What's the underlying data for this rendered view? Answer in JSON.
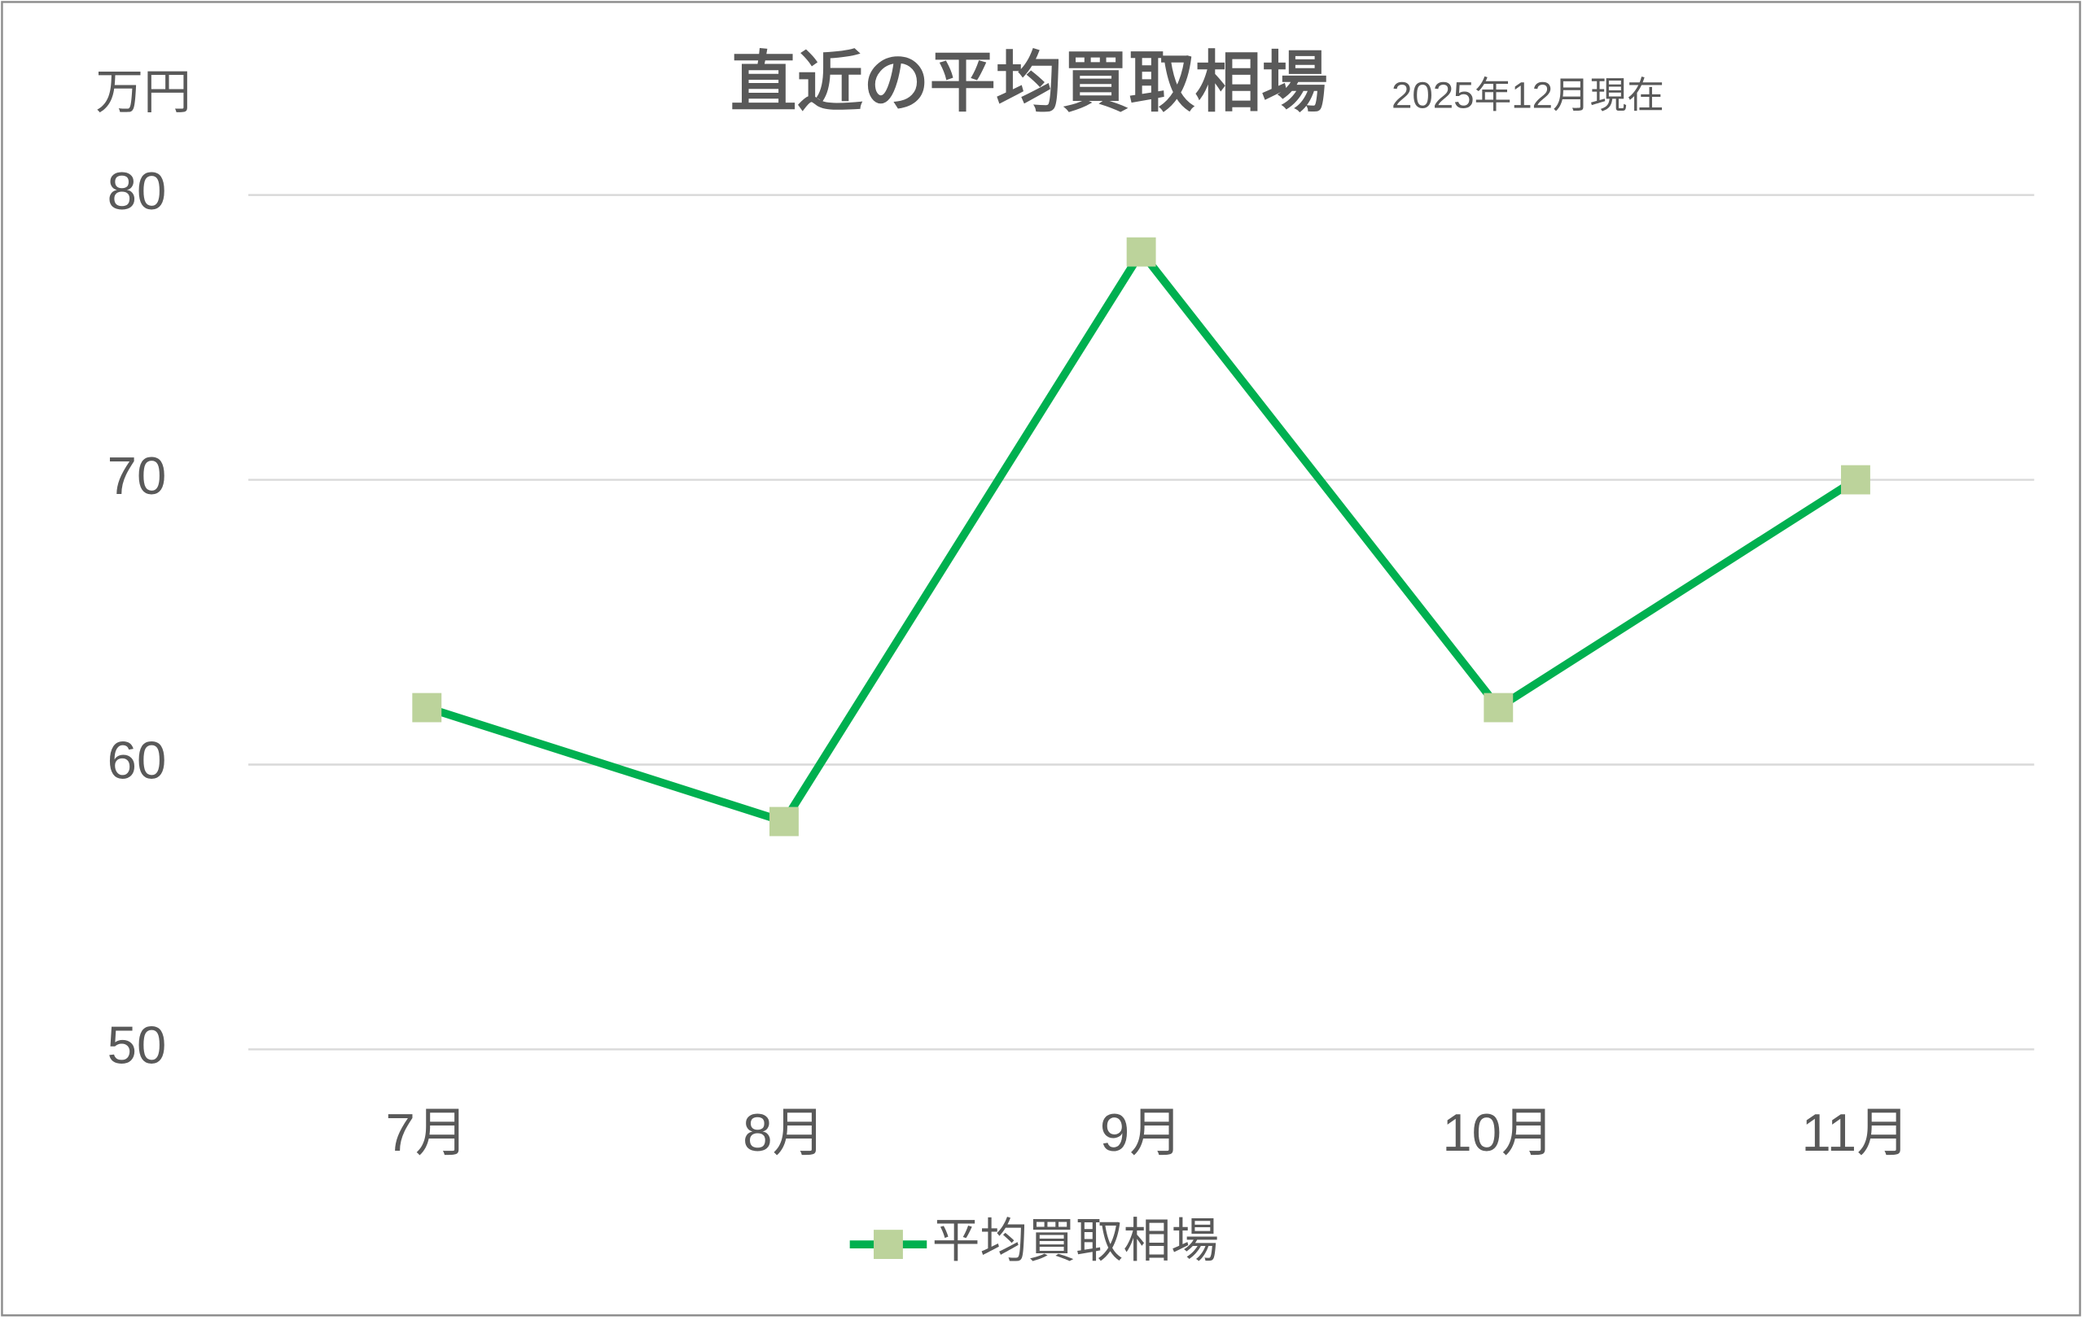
{
  "chart_data": {
    "type": "line",
    "title": "直近の平均買取相場",
    "subtitle": "2025年12月現在",
    "y_label": "万円",
    "categories": [
      "7月",
      "8月",
      "9月",
      "10月",
      "11月"
    ],
    "series": [
      {
        "name": "平均買取相場",
        "color": "#00b050",
        "marker_color": "#bcd39b",
        "values": [
          62,
          58,
          78,
          62,
          70
        ]
      }
    ],
    "ylim": [
      50,
      80
    ],
    "yticks": [
      50,
      60,
      70,
      80
    ],
    "grid": true,
    "legend": "bottom"
  }
}
